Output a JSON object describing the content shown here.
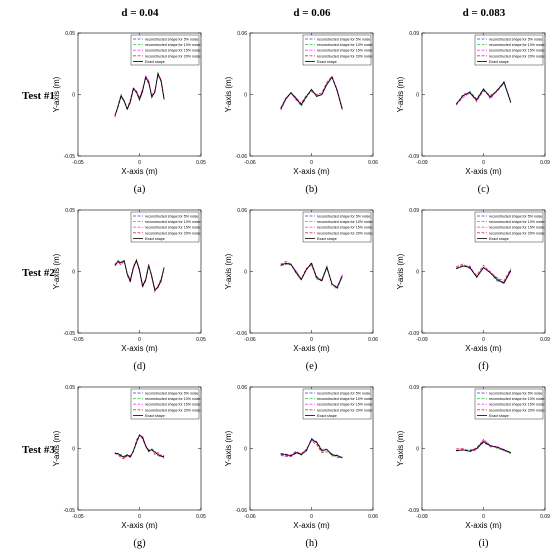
{
  "column_headers": [
    "d = 0.04",
    "d = 0.06",
    "d = 0.083"
  ],
  "row_labels": [
    "Test #1",
    "Test #2",
    "Test #3"
  ],
  "legend_labels": [
    "reconstructed shape for 5% noise",
    "reconstructed shape for 10% noise",
    "reconstructed shape for 15% noise",
    "reconstructed shape for 20% noise",
    "Exact shape"
  ],
  "series_colors": [
    "#3b3bd9",
    "#2ecc40",
    "#ff40ff",
    "#e0305a",
    "#000000"
  ],
  "chart_data": [
    {
      "panel": "(a)",
      "type": "line",
      "test": 1,
      "d": 0.04,
      "xlabel": "X-axis (m)",
      "ylabel": "Y-axis (m)",
      "xlim": [
        -0.05,
        0.05
      ],
      "ylim": [
        -0.05,
        0.05
      ],
      "xticks": [
        "-0.05",
        "0",
        "0.05"
      ],
      "yticks": [
        "-0.05",
        "0",
        "0.05"
      ],
      "legend_position": "top-right",
      "exact_shape": {
        "x": [
          -0.02,
          -0.0175,
          -0.015,
          -0.0125,
          -0.01,
          -0.0075,
          -0.005,
          -0.0025,
          0,
          0.0025,
          0.005,
          0.0075,
          0.01,
          0.0125,
          0.015,
          0.0175,
          0.02
        ],
        "y": [
          -0.017,
          -0.01,
          -0.001,
          -0.005,
          -0.012,
          -0.006,
          0.005,
          0.002,
          -0.004,
          0.003,
          0.014,
          0.01,
          -0.002,
          0.002,
          0.017,
          0.011,
          -0.004
        ]
      }
    },
    {
      "panel": "(b)",
      "type": "line",
      "test": 1,
      "d": 0.06,
      "xlabel": "X-axis (m)",
      "ylabel": "Y-axis (m)",
      "xlim": [
        -0.06,
        0.06
      ],
      "ylim": [
        -0.06,
        0.06
      ],
      "xticks": [
        "-0.06",
        "0",
        "0.06"
      ],
      "yticks": [
        "-0.06",
        "0",
        "0.06"
      ],
      "legend_position": "top-right",
      "exact_shape": {
        "x": [
          -0.03,
          -0.025,
          -0.02,
          -0.015,
          -0.01,
          -0.005,
          0,
          0.005,
          0.01,
          0.015,
          0.02,
          0.025,
          0.03
        ],
        "y": [
          -0.014,
          -0.004,
          0.002,
          -0.004,
          -0.01,
          -0.002,
          0.005,
          -0.002,
          0,
          0.01,
          0.017,
          0.004,
          -0.014
        ]
      }
    },
    {
      "panel": "(c)",
      "type": "line",
      "test": 1,
      "d": 0.083,
      "xlabel": "X-axis (m)",
      "ylabel": "Y-axis (m)",
      "xlim": [
        -0.09,
        0.09
      ],
      "ylim": [
        -0.09,
        0.09
      ],
      "xticks": [
        "-0.09",
        "0",
        "0.09"
      ],
      "yticks": [
        "-0.09",
        "0",
        "0.09"
      ],
      "legend_position": "top-right",
      "exact_shape": {
        "x": [
          -0.04,
          -0.03,
          -0.02,
          -0.01,
          0,
          0.01,
          0.02,
          0.03,
          0.04
        ],
        "y": [
          -0.014,
          -0.002,
          0.003,
          -0.008,
          0.008,
          -0.004,
          0.006,
          0.018,
          -0.012
        ]
      }
    },
    {
      "panel": "(d)",
      "type": "line",
      "test": 2,
      "d": 0.04,
      "xlabel": "X-axis (m)",
      "ylabel": "Y-axis (m)",
      "xlim": [
        -0.05,
        0.05
      ],
      "ylim": [
        -0.05,
        0.05
      ],
      "xticks": [
        "-0.05",
        "0",
        "0.05"
      ],
      "yticks": [
        "-0.05",
        "0",
        "0.05"
      ],
      "legend_position": "top-right",
      "exact_shape": {
        "x": [
          -0.02,
          -0.0175,
          -0.015,
          -0.0125,
          -0.01,
          -0.0075,
          -0.005,
          -0.0025,
          0,
          0.0025,
          0.005,
          0.0075,
          0.01,
          0.0125,
          0.015,
          0.0175,
          0.02
        ],
        "y": [
          0.005,
          0.008,
          0.007,
          0.009,
          -0.002,
          -0.008,
          0.003,
          0.009,
          0.001,
          -0.012,
          -0.007,
          0.005,
          -0.004,
          -0.015,
          -0.013,
          -0.007,
          0.003
        ]
      }
    },
    {
      "panel": "(e)",
      "type": "line",
      "test": 2,
      "d": 0.06,
      "xlabel": "X-axis (m)",
      "ylabel": "Y-axis (m)",
      "xlim": [
        -0.06,
        0.06
      ],
      "ylim": [
        -0.06,
        0.06
      ],
      "xticks": [
        "-0.06",
        "0",
        "0.06"
      ],
      "yticks": [
        "-0.06",
        "0",
        "0.06"
      ],
      "legend_position": "top-right",
      "exact_shape": {
        "x": [
          -0.03,
          -0.025,
          -0.02,
          -0.015,
          -0.01,
          -0.005,
          0,
          0.005,
          0.01,
          0.015,
          0.02,
          0.025,
          0.03
        ],
        "y": [
          0.006,
          0.008,
          0.007,
          -0.001,
          -0.008,
          0.002,
          0.008,
          -0.006,
          -0.009,
          0.004,
          -0.012,
          -0.016,
          -0.004
        ]
      }
    },
    {
      "panel": "(f)",
      "type": "line",
      "test": 2,
      "d": 0.083,
      "xlabel": "X-axis (m)",
      "ylabel": "Y-axis (m)",
      "xlim": [
        -0.09,
        0.09
      ],
      "ylim": [
        -0.09,
        0.09
      ],
      "xticks": [
        "-0.09",
        "0",
        "0.09"
      ],
      "yticks": [
        "-0.09",
        "0",
        "0.09"
      ],
      "legend_position": "top-right",
      "exact_shape": {
        "x": [
          -0.04,
          -0.03,
          -0.02,
          -0.01,
          0,
          0.01,
          0.02,
          0.03,
          0.04
        ],
        "y": [
          0.004,
          0.008,
          0.006,
          -0.008,
          0.006,
          -0.002,
          -0.012,
          -0.017,
          0.002
        ]
      }
    },
    {
      "panel": "(g)",
      "type": "line",
      "test": 3,
      "d": 0.04,
      "xlabel": "X-axis (m)",
      "ylabel": "Y-axis (m)",
      "xlim": [
        -0.05,
        0.05
      ],
      "ylim": [
        -0.05,
        0.05
      ],
      "xticks": [
        "-0.05",
        "0",
        "0.05"
      ],
      "yticks": [
        "-0.05",
        "0",
        "0.05"
      ],
      "legend_position": "top-right",
      "exact_shape": {
        "x": [
          -0.02,
          -0.0175,
          -0.015,
          -0.0125,
          -0.01,
          -0.0075,
          -0.005,
          -0.0025,
          0,
          0.0025,
          0.005,
          0.0075,
          0.01,
          0.0125,
          0.015,
          0.0175,
          0.02
        ],
        "y": [
          -0.004,
          -0.004,
          -0.006,
          -0.007,
          -0.005,
          -0.007,
          -0.002,
          0.005,
          0.011,
          0.009,
          0.002,
          -0.002,
          -0.001,
          -0.003,
          -0.005,
          -0.006,
          -0.007
        ]
      }
    },
    {
      "panel": "(h)",
      "type": "line",
      "test": 3,
      "d": 0.06,
      "xlabel": "X-axis (m)",
      "ylabel": "Y-axis (m)",
      "xlim": [
        -0.06,
        0.06
      ],
      "ylim": [
        -0.06,
        0.06
      ],
      "xticks": [
        "-0.06",
        "0",
        "0.06"
      ],
      "yticks": [
        "-0.06",
        "0",
        "0.06"
      ],
      "legend_position": "top-right",
      "exact_shape": {
        "x": [
          -0.03,
          -0.025,
          -0.02,
          -0.015,
          -0.01,
          -0.005,
          0,
          0.005,
          0.01,
          0.015,
          0.02,
          0.025,
          0.03
        ],
        "y": [
          -0.005,
          -0.006,
          -0.007,
          -0.004,
          -0.006,
          -0.002,
          0.009,
          0.006,
          -0.002,
          -0.001,
          -0.006,
          -0.007,
          -0.009
        ]
      }
    },
    {
      "panel": "(i)",
      "type": "line",
      "test": 3,
      "d": 0.083,
      "xlabel": "X-axis (m)",
      "ylabel": "Y-axis (m)",
      "xlim": [
        -0.09,
        0.09
      ],
      "ylim": [
        -0.09,
        0.09
      ],
      "xticks": [
        "-0.09",
        "0",
        "0.09"
      ],
      "yticks": [
        "-0.09",
        "0",
        "0.09"
      ],
      "legend_position": "top-right",
      "exact_shape": {
        "x": [
          -0.04,
          -0.03,
          -0.02,
          -0.01,
          0,
          0.01,
          0.02,
          0.03,
          0.04
        ],
        "y": [
          -0.003,
          -0.002,
          -0.004,
          0,
          0.01,
          0.004,
          0.002,
          -0.002,
          -0.006
        ]
      }
    }
  ]
}
